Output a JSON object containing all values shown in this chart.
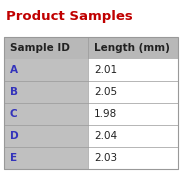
{
  "title": "Product Samples",
  "title_color": "#c00000",
  "col_headers": [
    "Sample ID",
    "Length (mm)"
  ],
  "col_header_color": "#222222",
  "rows": [
    [
      "A",
      "2.01"
    ],
    [
      "B",
      "2.05"
    ],
    [
      "C",
      "1.98"
    ],
    [
      "D",
      "2.04"
    ],
    [
      "E",
      "2.03"
    ]
  ],
  "sample_id_color": "#3333bb",
  "value_color": "#222222",
  "header_bg": "#b8b8b8",
  "left_col_bg": "#c0c0c0",
  "right_col_bg": "#ffffff",
  "table_border_color": "#999999",
  "fig_bg": "#ffffff",
  "title_fontsize": 9.5,
  "header_fontsize": 7.5,
  "cell_fontsize": 7.5
}
